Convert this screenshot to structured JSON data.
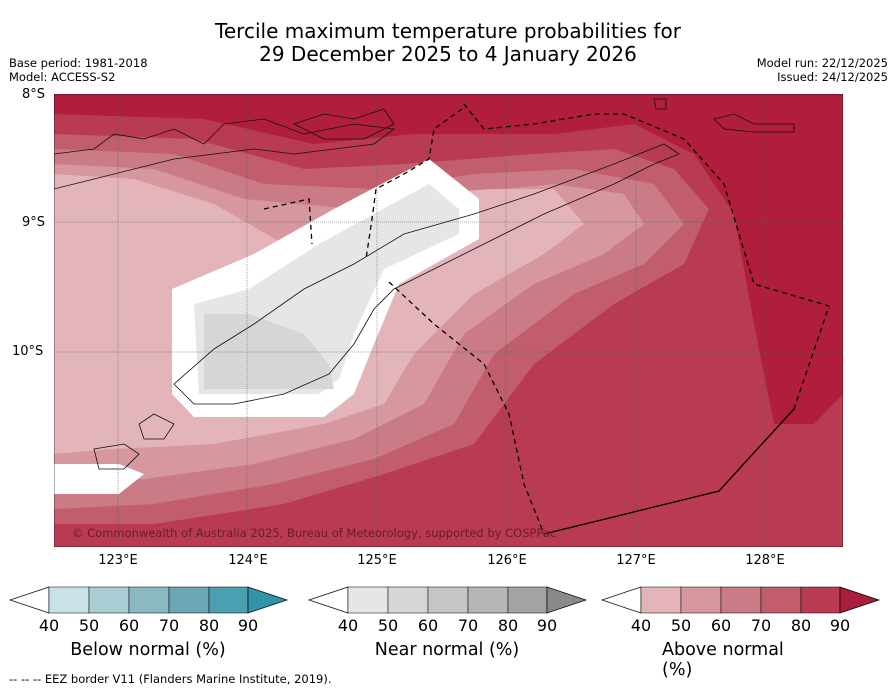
{
  "title": {
    "line1": "Tercile maximum temperature probabilities for",
    "line2": "29 December 2025 to 4 January 2026"
  },
  "meta_left": {
    "base_period": "Base period: 1981-2018",
    "model": "Model: ACCESS-S2"
  },
  "meta_right": {
    "model_run": "Model run: 22/12/2025",
    "issued": "Issued: 24/12/2025"
  },
  "latitude_labels": [
    "8°S",
    "9°S",
    "10°S"
  ],
  "longitude_labels": [
    "123°E",
    "124°E",
    "125°E",
    "126°E",
    "127°E",
    "128°E"
  ],
  "copyright": "© Commonwealth of Australia 2025, Bureau of Meteorology, supported by COSPPac",
  "colorbars": [
    {
      "label": "Below normal (%)",
      "ticks": [
        "40",
        "50",
        "60",
        "70",
        "80",
        "90"
      ],
      "colors": [
        "#c8e2e8",
        "#a9cdd3",
        "#8ab9c2",
        "#6aa6b3",
        "#4aa0b0",
        "#3292a8"
      ]
    },
    {
      "label": "Near normal (%)",
      "ticks": [
        "40",
        "50",
        "60",
        "70",
        "80",
        "90"
      ],
      "colors": [
        "#e6e6e6",
        "#d6d6d6",
        "#c6c6c6",
        "#b5b5b5",
        "#a3a3a3",
        "#8a8a8a"
      ]
    },
    {
      "label": "Above normal (%)",
      "ticks": [
        "40",
        "50",
        "60",
        "70",
        "80",
        "90"
      ],
      "colors": [
        "#e4b4bb",
        "#d7979f",
        "#cb7b85",
        "#c25e6c",
        "#b83b52",
        "#a81c3c"
      ]
    }
  ],
  "footer": "--  --  -- EEZ border V11 (Flanders Marine Institute, 2019)."
}
